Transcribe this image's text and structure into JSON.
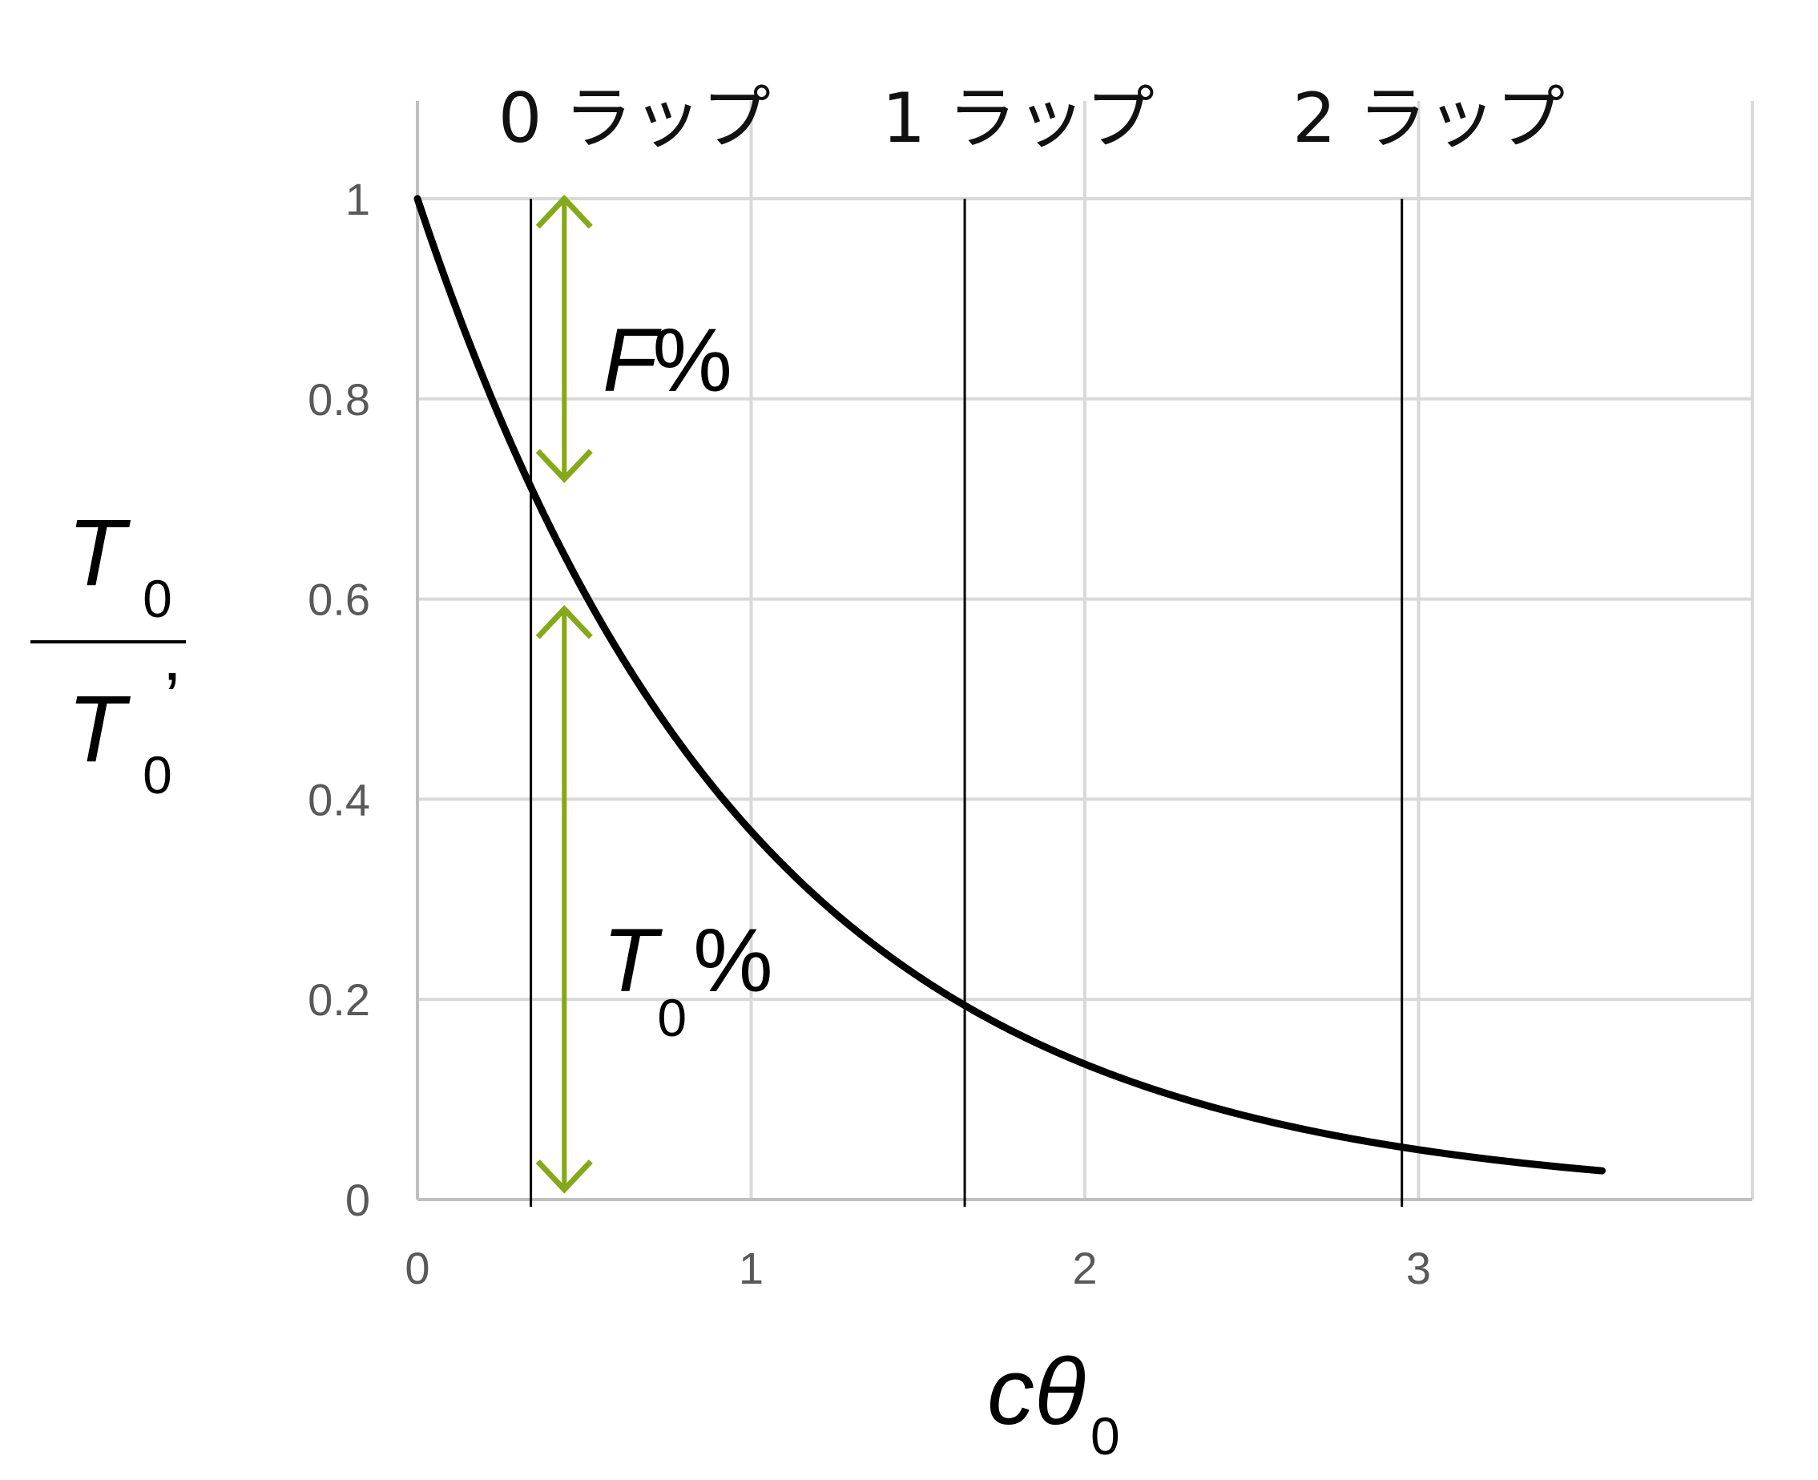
{
  "chart_data": {
    "type": "line",
    "xlabel": {
      "main": "cθ",
      "sub": "0"
    },
    "ylabel": {
      "numerator": {
        "main": "T",
        "sub": "0"
      },
      "denominator": {
        "main": "T",
        "sub": "0",
        "prime": "’"
      }
    },
    "xlim": [
      0,
      4
    ],
    "ylim": [
      0,
      1
    ],
    "x_ticks": [
      0,
      1,
      2,
      3
    ],
    "y_ticks": [
      0,
      0.2,
      0.4,
      0.6,
      0.8,
      1
    ],
    "x_tick_labels": [
      "0",
      "1",
      "2",
      "3"
    ],
    "y_tick_labels": [
      "0",
      "0.2",
      "0.4",
      "0.6",
      "0.8",
      "1"
    ],
    "x_gridlines": [
      0,
      1,
      2,
      3,
      4
    ],
    "grid": true,
    "series": [
      {
        "function": "exp(-x)",
        "x_range": [
          0,
          3.55
        ],
        "color": "#000000"
      }
    ],
    "vertical_markers": [
      {
        "x": 0.34,
        "label": "0 ラップ",
        "label_x": 0.65
      },
      {
        "x": 1.64,
        "label": "1 ラップ",
        "label_x": 1.8
      },
      {
        "x": 2.95,
        "label": "2 ラップ",
        "label_x": 3.03
      }
    ],
    "arrows": [
      {
        "x": 0.44,
        "y_from": 1.0,
        "y_to": 0.72,
        "label_main": "F",
        "label_suffix": "%",
        "label_y": 0.84
      },
      {
        "x": 0.44,
        "y_from": 0.59,
        "y_to": 0.01,
        "label_main": "T",
        "label_sub": "0",
        "label_suffix": "%",
        "label_y": 0.24
      }
    ],
    "colors": {
      "curve": "#000000",
      "arrow": "#86a81b",
      "grid": "#d9d9d9",
      "axis": "#bfbfbf",
      "marker": "#000000",
      "tick_text": "#595959"
    }
  }
}
